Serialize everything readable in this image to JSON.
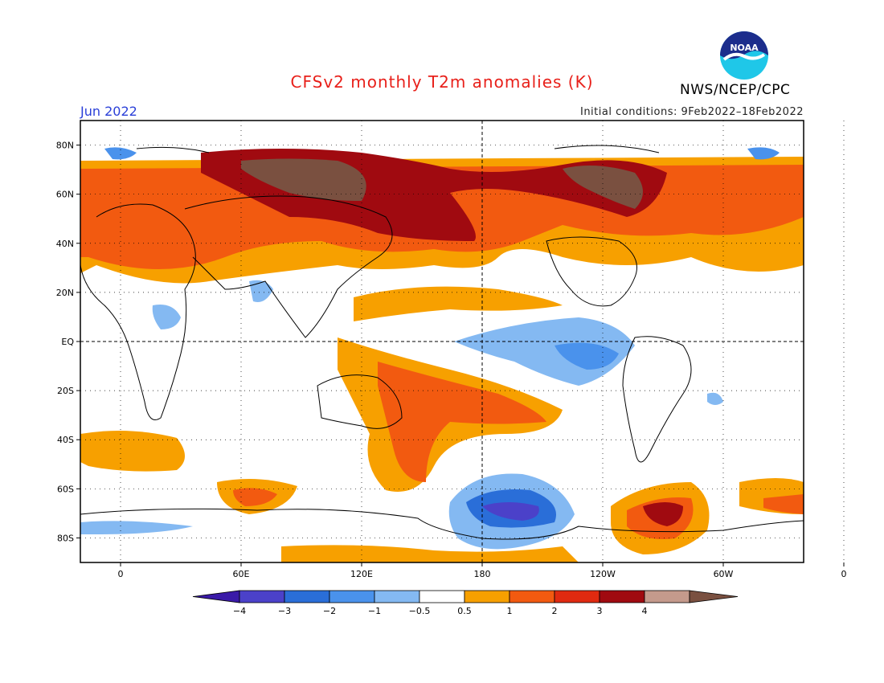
{
  "header": {
    "title": "CFSv2 monthly T2m anomalies (K)",
    "agency": "NWS/NCEP/CPC",
    "logo_text": "NOAA",
    "month": "Jun 2022",
    "initial_conditions": "Initial conditions: 9Feb2022–18Feb2022"
  },
  "map": {
    "lat_labels": [
      "80N",
      "60N",
      "40N",
      "20N",
      "EQ",
      "20S",
      "40S",
      "60S",
      "80S"
    ],
    "lon_labels": [
      "0",
      "60E",
      "120E",
      "180",
      "120W",
      "60W",
      "0"
    ]
  },
  "colorbar": {
    "labels": [
      "−4",
      "−3",
      "−2",
      "−1",
      "−0.5",
      "0.5",
      "1",
      "2",
      "3",
      "4"
    ],
    "colors": [
      "#3a1aa8",
      "#4b41c9",
      "#2a6ed8",
      "#4a92ec",
      "#84b9f2",
      "#ffffff",
      "#f7a000",
      "#f25a10",
      "#e02a10",
      "#a00a10",
      "#c49a8c",
      "#7a5040"
    ]
  }
}
